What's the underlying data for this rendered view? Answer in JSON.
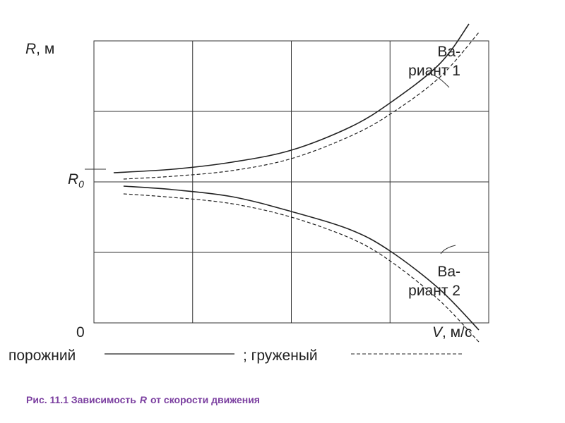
{
  "chart_data": {
    "type": "line",
    "y_axis": {
      "symbol": "R",
      "unit": ", м",
      "origin_label": "0",
      "reference_label": "R",
      "reference_subscript": "0"
    },
    "x_axis": {
      "symbol": "V",
      "unit": ", м/с"
    },
    "grid": true,
    "series": [
      {
        "name": "Вариант 1",
        "style": "solid",
        "x": [
          0.2,
          0.8,
          1.4,
          2.0,
          2.6,
          3.0,
          3.5,
          3.8
        ],
        "y": [
          0.13,
          0.18,
          0.28,
          0.45,
          0.78,
          1.12,
          1.67,
          2.24
        ]
      },
      {
        "style": "dashed",
        "x": [
          0.3,
          0.8,
          1.4,
          2.0,
          2.6,
          3.0,
          3.5,
          3.9
        ],
        "y": [
          0.04,
          0.08,
          0.16,
          0.33,
          0.65,
          0.96,
          1.48,
          2.12
        ]
      },
      {
        "name": "Вариант 2",
        "style": "solid",
        "x": [
          0.3,
          0.8,
          1.4,
          2.0,
          2.6,
          3.0,
          3.5,
          3.9
        ],
        "y": [
          -0.06,
          -0.11,
          -0.21,
          -0.42,
          -0.68,
          -0.98,
          -1.52,
          -2.1
        ]
      },
      {
        "style": "dashed",
        "x": [
          0.3,
          0.8,
          1.4,
          2.0,
          2.6,
          3.0,
          3.5,
          3.9
        ],
        "y": [
          -0.17,
          -0.22,
          -0.31,
          -0.5,
          -0.8,
          -1.12,
          -1.68,
          -2.27
        ]
      }
    ],
    "annotations": [
      {
        "text_line1": "Ва-",
        "text_line2": "риант 1"
      },
      {
        "text_line1": "Ва-",
        "text_line2": "риант 2"
      }
    ],
    "legend": {
      "solid_label": "порожний",
      "dashed_label": "; груженый"
    },
    "caption": {
      "prefix": "Рис. 11.1  Зависимость",
      "symbol": "R",
      "suffix": "от скорости движения"
    }
  }
}
